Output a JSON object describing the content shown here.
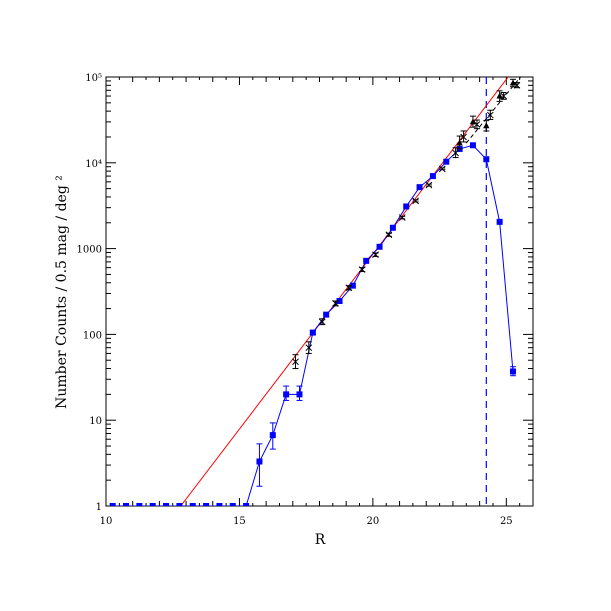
{
  "chart_data": {
    "type": "scatter",
    "xlabel": "R",
    "ylabel": "Number Counts / 0.5 mag / deg ²",
    "xlim": [
      10,
      26
    ],
    "ylim": [
      1,
      100000
    ],
    "yscale": "log",
    "x_ticks": [
      10,
      15,
      20,
      25
    ],
    "x_tick_labels": [
      "10",
      "15",
      "20",
      "25"
    ],
    "y_ticks": [
      1,
      10,
      100,
      1000,
      10000,
      100000
    ],
    "y_tick_labels": [
      "1",
      "10",
      "100",
      "1000",
      "10⁴",
      "10⁵"
    ],
    "vline": {
      "x": 24.25,
      "style": "dashed",
      "color": "#0000ff"
    },
    "colors": {
      "blue": "#0000ff",
      "red": "#ff0000",
      "black": "#000000"
    },
    "series": [
      {
        "type": "line+markers",
        "marker": "square",
        "color": "#0000ff",
        "x": [
          10.25,
          10.75,
          11.25,
          11.75,
          12.25,
          12.75,
          13.25,
          13.75,
          14.25,
          14.75,
          15.25,
          15.75,
          16.25,
          16.75,
          17.25,
          17.75,
          18.25,
          18.75,
          19.25,
          19.75,
          20.25,
          20.75,
          21.25,
          21.75,
          22.25,
          22.75,
          23.25,
          23.75,
          24.25,
          24.75,
          25.25
        ],
        "y": [
          1,
          1,
          1,
          1,
          1,
          1,
          1,
          1,
          1,
          1,
          1,
          3.3,
          6.7,
          20,
          20,
          105,
          170,
          245,
          370,
          720,
          1050,
          1750,
          3100,
          5200,
          7000,
          10300,
          14500,
          16000,
          11000,
          2050,
          37
        ],
        "yerr_low": [
          0,
          0,
          0,
          0,
          0,
          0,
          0,
          0,
          0,
          0,
          0,
          1.6,
          2.1,
          3.0,
          3.0,
          5,
          0,
          0,
          0,
          0,
          0,
          0,
          0,
          0,
          0,
          0,
          0,
          0,
          0,
          0,
          4
        ],
        "yerr_high": [
          0,
          0,
          0,
          0,
          0,
          0,
          0,
          0,
          0,
          0,
          0,
          2.0,
          2.6,
          5.0,
          5.0,
          5,
          0,
          0,
          0,
          0,
          0,
          0,
          0,
          0,
          0,
          0,
          0,
          0,
          0,
          0,
          5
        ]
      },
      {
        "type": "markers",
        "marker": "cross",
        "color": "#000000",
        "x": [
          17.1,
          17.6,
          18.1,
          18.6,
          19.1,
          19.6,
          20.1,
          20.6,
          21.1,
          21.6,
          22.1,
          22.6,
          23.1,
          23.4,
          23.9,
          24.4,
          24.9,
          25.4
        ],
        "y": [
          48,
          70,
          140,
          230,
          350,
          570,
          850,
          1450,
          2300,
          3600,
          5500,
          8500,
          13000,
          20000,
          28000,
          36000,
          60000,
          80000
        ],
        "yerr_low": [
          8,
          10,
          10,
          15,
          20,
          30,
          40,
          60,
          80,
          100,
          150,
          200,
          1500,
          2500,
          3000,
          4000,
          5000,
          5000
        ],
        "yerr_high": [
          10,
          12,
          12,
          15,
          20,
          30,
          40,
          60,
          80,
          100,
          150,
          200,
          2000,
          3500,
          3500,
          5000,
          6000,
          6000
        ]
      },
      {
        "type": "markers",
        "marker": "triangle",
        "color": "#000000",
        "x": [
          23.25,
          23.75,
          24.25,
          24.75,
          25.25
        ],
        "y": [
          17000,
          30000,
          27000,
          60000,
          85000
        ],
        "yerr_low": [
          2500,
          4000,
          3500,
          8000,
          8000
        ],
        "yerr_high": [
          3500,
          5000,
          4000,
          9000,
          9000
        ]
      },
      {
        "type": "line",
        "color": "#ff0000",
        "x": [
          12.8,
          26
        ],
        "y": [
          1,
          240000
        ]
      },
      {
        "type": "line",
        "color": "#000000",
        "dash": "4,3",
        "x": [
          23.5,
          26
        ],
        "y": [
          17000,
          150000
        ]
      }
    ]
  }
}
